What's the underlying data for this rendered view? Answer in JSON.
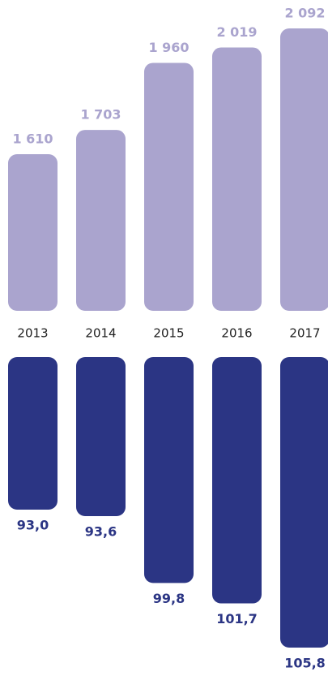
{
  "chart_data": {
    "type": "bar",
    "categories": [
      "2013",
      "2014",
      "2015",
      "2016",
      "2017"
    ],
    "series": [
      {
        "color": "#aaa4ce",
        "values": [
          1610,
          1703,
          1960,
          2019,
          2092
        ],
        "value_labels": [
          "1 610",
          "1 703",
          "1 960",
          "2 019",
          "2 092"
        ]
      },
      {
        "color": "#2b3584",
        "values": [
          93.0,
          93.6,
          99.8,
          101.7,
          105.8
        ],
        "value_labels": [
          "93,0",
          "93,6",
          "99,8",
          "101,7",
          "105,8"
        ]
      }
    ]
  }
}
